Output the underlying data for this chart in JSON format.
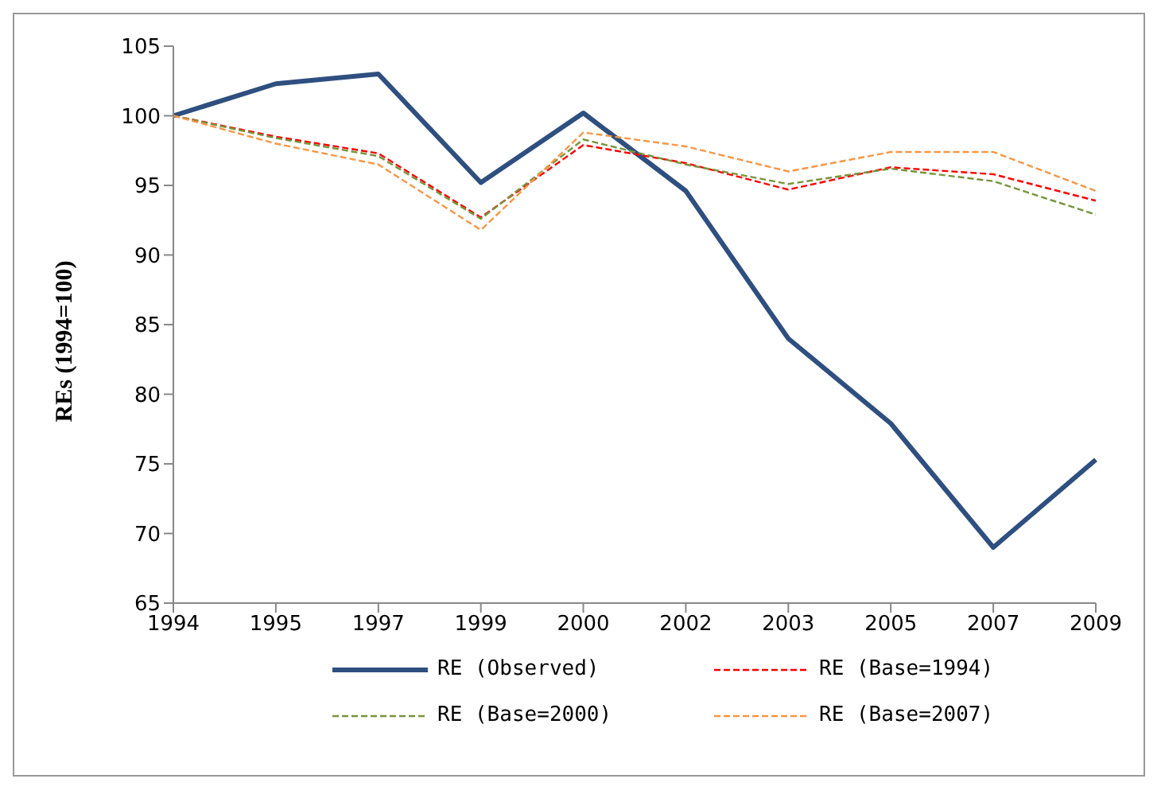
{
  "chart_data": {
    "type": "line",
    "ylabel": "REs (1994=100)",
    "categories": [
      "1994",
      "1995",
      "1997",
      "1999",
      "2000",
      "2002",
      "2003",
      "2005",
      "2007",
      "2009"
    ],
    "series": [
      {
        "name": "RE (Observed)",
        "color": "#2e4f7f",
        "line_style": "solid",
        "values": [
          100,
          102.3,
          103,
          95.2,
          100.2,
          94.6,
          84,
          77.9,
          69,
          75.3
        ]
      },
      {
        "name": "RE (Base=1994)",
        "color": "#ff0000",
        "line_style": "dashed",
        "values": [
          100,
          98.5,
          97.3,
          92.7,
          97.9,
          96.6,
          94.7,
          96.3,
          95.8,
          93.9
        ]
      },
      {
        "name": "RE (Base=2000)",
        "color": "#77933c",
        "line_style": "dashed",
        "values": [
          100,
          98.4,
          97.1,
          92.6,
          98.3,
          96.5,
          95.1,
          96.2,
          95.3,
          92.9
        ]
      },
      {
        "name": "RE (Base=2007)",
        "color": "#f79646",
        "line_style": "dashed",
        "values": [
          100,
          98,
          96.5,
          91.8,
          98.8,
          97.8,
          96,
          97.4,
          97.4,
          94.6
        ]
      }
    ],
    "ylim": [
      65,
      105
    ],
    "yticks": [
      65,
      70,
      75,
      80,
      85,
      90,
      95,
      100,
      105
    ],
    "grid": false,
    "legend": "bottom",
    "marker": "none"
  }
}
